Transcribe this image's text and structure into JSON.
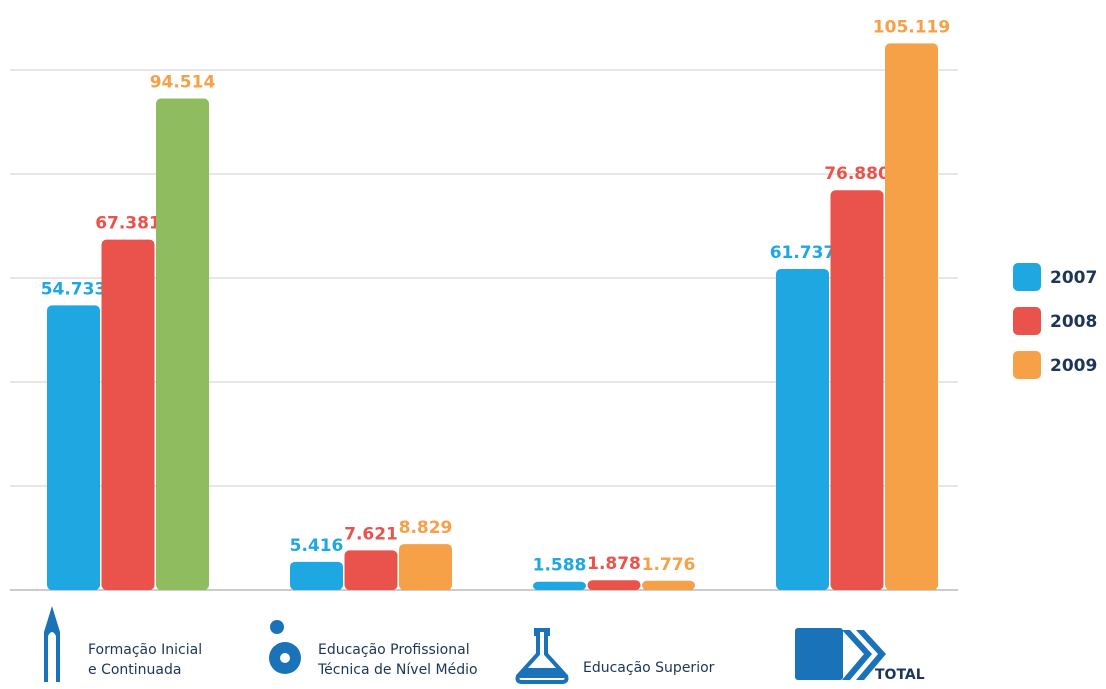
{
  "chart_data": {
    "type": "bar",
    "categories": [
      [
        "Formação Inicial",
        "e Continuada"
      ],
      [
        "Educação Profissional",
        "Técnica de Nível Médio"
      ],
      [
        "Educação Superior"
      ],
      [
        "TOTAL"
      ]
    ],
    "series": [
      {
        "name": "2007",
        "color": "#1ea7e1",
        "values": [
          54733,
          5416,
          1588,
          61737
        ],
        "value_labels": [
          "54.733",
          "5.416",
          "1.588",
          "61.737"
        ]
      },
      {
        "name": "2008",
        "color": "#e9534b",
        "values": [
          67381,
          7621,
          1878,
          76880
        ],
        "value_labels": [
          "67.381",
          "7.621",
          "1.878",
          "76.880"
        ]
      },
      {
        "name": "2009",
        "color": "#f6a048",
        "bar_colors": [
          "#8fbc5f",
          "#f6a048",
          "#f6a048",
          "#f6a048"
        ],
        "values": [
          94514,
          8829,
          1776,
          105119
        ],
        "value_labels": [
          "94.514",
          "8.829",
          "1.776",
          "105.119"
        ]
      }
    ],
    "ylim": [
      0,
      110000
    ],
    "yticks": [
      0,
      20000,
      40000,
      60000,
      80000,
      100000
    ],
    "grid": true,
    "legend": "right"
  }
}
